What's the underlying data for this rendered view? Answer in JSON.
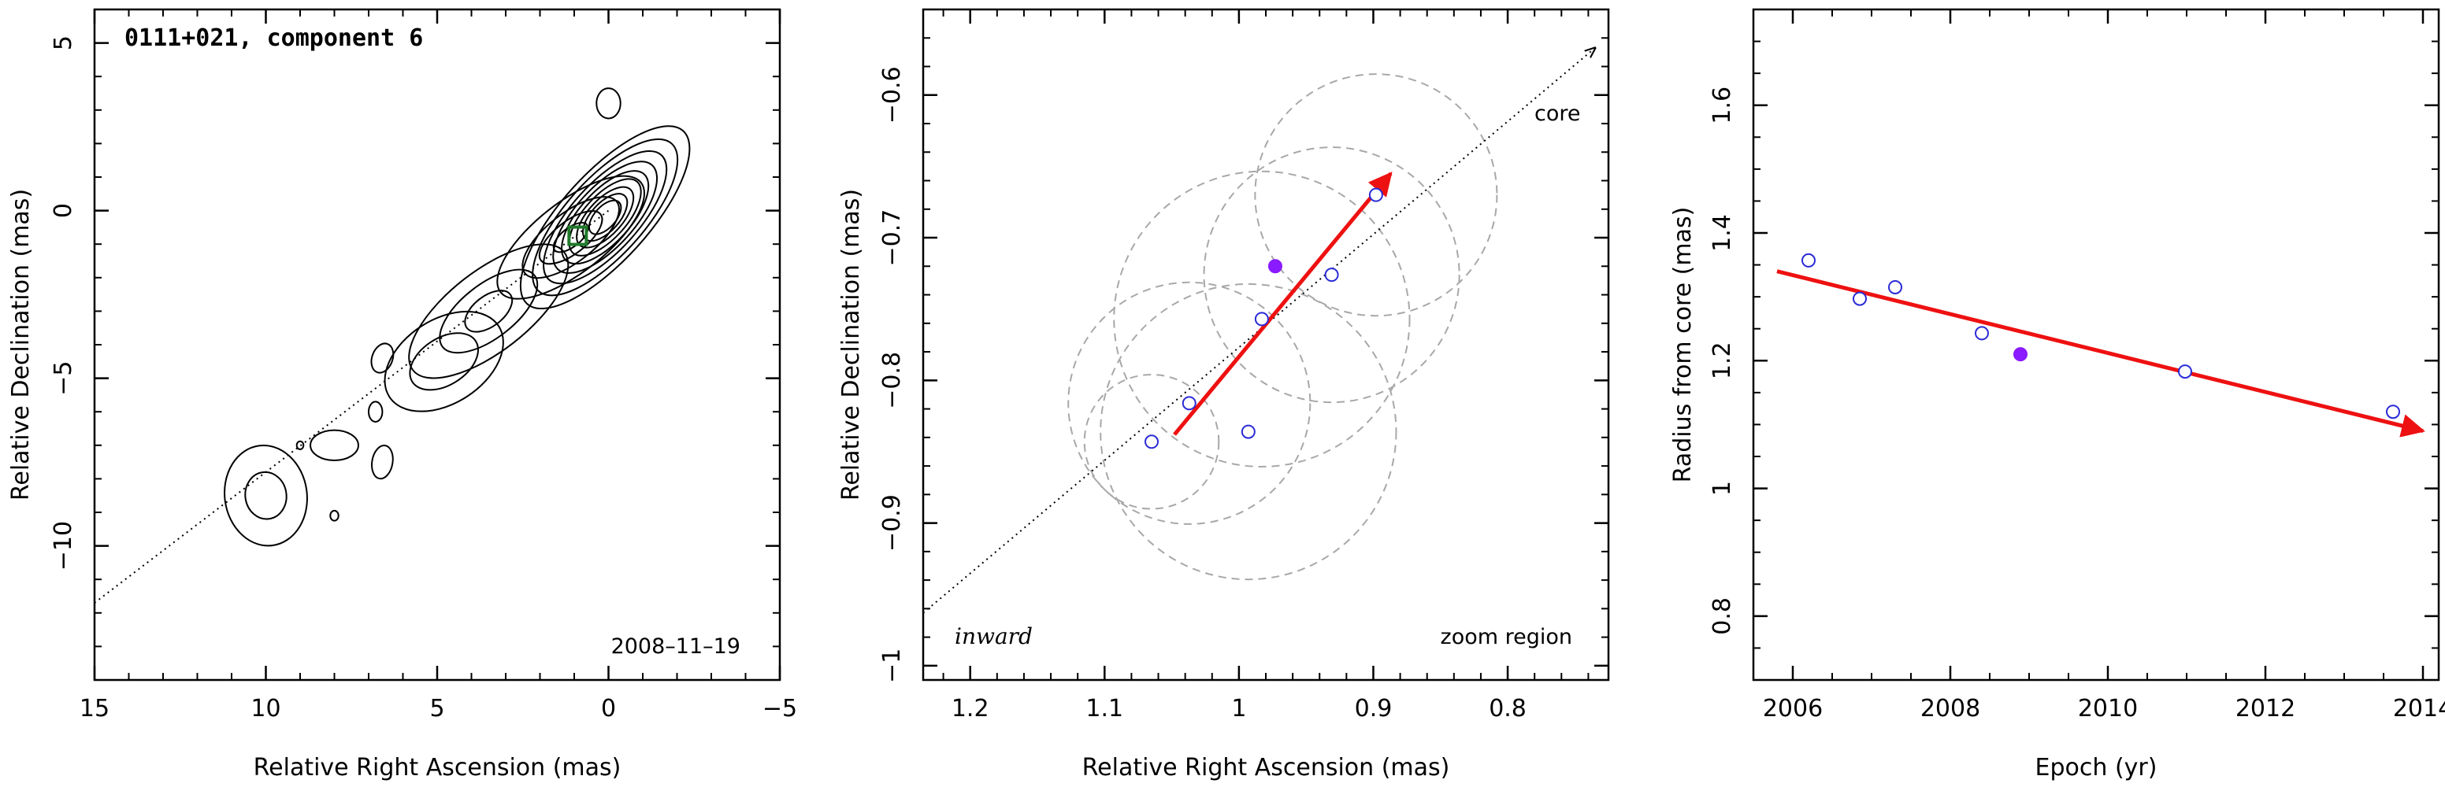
{
  "chart_data": [
    {
      "type": "contour",
      "title": "0111+021, component 6",
      "annotation": "2008–11–19",
      "xlabel": "Relative Right Ascension (mas)",
      "ylabel": "Relative Declination (mas)",
      "xlim": [
        15,
        -5
      ],
      "ylim": [
        -14,
        6
      ],
      "xticks": [
        15,
        10,
        5,
        0,
        -5
      ],
      "yticks": [
        5,
        0,
        -5,
        -10
      ],
      "x_tick_labels": [
        "15",
        "10",
        "5",
        "0",
        "−5"
      ],
      "y_tick_labels": [
        "5",
        "0",
        "−5",
        "−10"
      ],
      "direction_line": {
        "from": [
          15,
          -11.7
        ],
        "to": [
          0,
          0
        ]
      },
      "component_marker": {
        "x": 0.9,
        "y": -0.75,
        "shape": "square"
      },
      "contour_sources": [
        {
          "x": 0.1,
          "y": -0.2,
          "levels": 9
        },
        {
          "x": 1.1,
          "y": -0.8,
          "levels": 4
        },
        {
          "x": 3.5,
          "y": -3.0,
          "levels": 3
        },
        {
          "x": 4.8,
          "y": -4.5,
          "levels": 2
        },
        {
          "x": 10.0,
          "y": -8.5,
          "levels": 2
        },
        {
          "x": 8.0,
          "y": -7.0,
          "levels": 1
        },
        {
          "x": 6.6,
          "y": -7.5,
          "levels": 1
        },
        {
          "x": 6.6,
          "y": -4.4,
          "levels": 1
        },
        {
          "x": 6.8,
          "y": -6.0,
          "levels": 1
        },
        {
          "x": 0.0,
          "y": 3.2,
          "levels": 1
        },
        {
          "x": 8.0,
          "y": -9.1,
          "levels": 1
        },
        {
          "x": 9.0,
          "y": -7.0,
          "levels": 1
        }
      ]
    },
    {
      "type": "scatter",
      "title": "",
      "xlabel": "Relative Right Ascension (mas)",
      "ylabel": "Relative Declination (mas)",
      "xlim": [
        1.235,
        0.725
      ],
      "ylim": [
        -1.01,
        -0.54
      ],
      "xticks": [
        1.2,
        1.1,
        1.0,
        0.9,
        0.8
      ],
      "yticks": [
        -0.6,
        -0.7,
        -0.8,
        -0.9,
        -1.0
      ],
      "x_tick_labels": [
        "1.2",
        "1.1",
        "1",
        "0.9",
        "0.8"
      ],
      "y_tick_labels": [
        "−0.6",
        "−0.7",
        "−0.8",
        "−0.9",
        "−1"
      ],
      "annotations": {
        "core_label": "core",
        "inward_label": "inward",
        "zoom_label": "zoom region"
      },
      "points": [
        {
          "x": 1.065,
          "y": -0.843,
          "filled": false
        },
        {
          "x": 1.037,
          "y": -0.816,
          "filled": false
        },
        {
          "x": 0.983,
          "y": -0.757,
          "filled": false
        },
        {
          "x": 0.931,
          "y": -0.726,
          "filled": false
        },
        {
          "x": 0.898,
          "y": -0.67,
          "filled": false
        },
        {
          "x": 0.993,
          "y": -0.836,
          "filled": false
        },
        {
          "x": 0.973,
          "y": -0.72,
          "filled": true
        }
      ],
      "error_circles": [
        {
          "x": 1.065,
          "y": -0.843,
          "r": 0.05
        },
        {
          "x": 1.037,
          "y": -0.816,
          "r": 0.09
        },
        {
          "x": 0.983,
          "y": -0.757,
          "r": 0.11
        },
        {
          "x": 0.931,
          "y": -0.726,
          "r": 0.095
        },
        {
          "x": 0.898,
          "y": -0.67,
          "r": 0.09
        },
        {
          "x": 0.993,
          "y": -0.836,
          "r": 0.11
        }
      ],
      "fit_arrow": {
        "from": [
          1.048,
          -0.838
        ],
        "to": [
          0.887,
          -0.655
        ]
      },
      "direction_line": {
        "from": [
          1.235,
          -0.963
        ],
        "to": [
          0.735,
          -0.567
        ]
      }
    },
    {
      "type": "scatter",
      "title": "",
      "xlabel": "Epoch (yr)",
      "ylabel": "Radius from core (mas)",
      "xlim": [
        2005.5,
        2014.2
      ],
      "ylim": [
        0.7,
        1.75
      ],
      "xticks": [
        2006,
        2008,
        2010,
        2012,
        2014
      ],
      "yticks": [
        0.8,
        1.0,
        1.2,
        1.4,
        1.6
      ],
      "x_tick_labels": [
        "2006",
        "2008",
        "2010",
        "2012",
        "2014"
      ],
      "y_tick_labels": [
        "0.8",
        "1",
        "1.2",
        "1.4",
        "1.6"
      ],
      "points": [
        {
          "x": 2006.2,
          "y": 1.357,
          "filled": false
        },
        {
          "x": 2006.85,
          "y": 1.297,
          "filled": false
        },
        {
          "x": 2007.3,
          "y": 1.315,
          "filled": false
        },
        {
          "x": 2008.4,
          "y": 1.243,
          "filled": false
        },
        {
          "x": 2008.89,
          "y": 1.21,
          "filled": true
        },
        {
          "x": 2010.98,
          "y": 1.183,
          "filled": false
        },
        {
          "x": 2013.62,
          "y": 1.12,
          "filled": false
        }
      ],
      "fit_arrow": {
        "from": [
          2005.8,
          1.34
        ],
        "to": [
          2014.0,
          1.09
        ]
      }
    }
  ],
  "colors": {
    "fit_arrow": "#ee1111",
    "open_point": "#2b2bd6",
    "filled_point": "#8a1aff",
    "error_circle": "#a8a8a8",
    "marker": "#1f7a2a",
    "contour": "#000000"
  }
}
